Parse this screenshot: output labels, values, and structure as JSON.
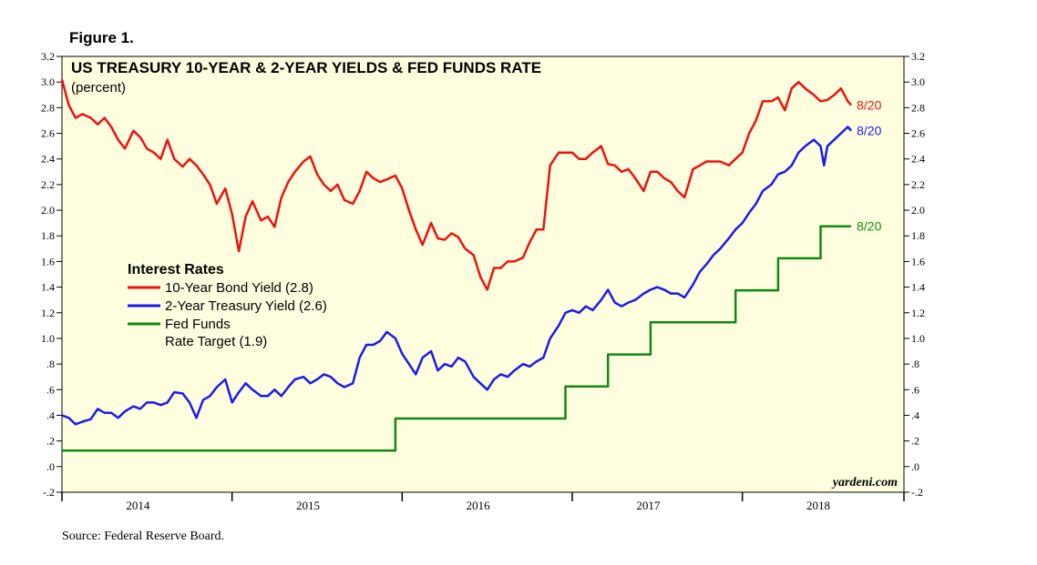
{
  "figure_label": "Figure 1.",
  "source_note": "Source: Federal Reserve Board.",
  "colors": {
    "plot_background": "#ffffe0",
    "ten_year": "#ee1111",
    "two_year": "#1a1aee",
    "fed_funds": "#118811"
  },
  "chart_data": {
    "type": "line",
    "title": "US TREASURY 10-YEAR & 2-YEAR YIELDS & FED FUNDS RATE",
    "subtitle": "(percent)",
    "xlabel": "",
    "ylabel": "",
    "xlim": [
      2014.0,
      2018.95
    ],
    "ylim": [
      -0.2,
      3.2
    ],
    "y_ticks": [
      -0.2,
      0.0,
      0.2,
      0.4,
      0.6,
      0.8,
      1.0,
      1.2,
      1.4,
      1.6,
      1.8,
      2.0,
      2.2,
      2.4,
      2.6,
      2.8,
      3.0,
      3.2
    ],
    "y_tick_labels": [
      "-.2",
      ".0",
      ".2",
      ".4",
      ".6",
      ".8",
      "1.0",
      "1.2",
      "1.4",
      "1.6",
      "1.8",
      "2.0",
      "2.2",
      "2.4",
      "2.6",
      "2.8",
      "3.0",
      "3.2"
    ],
    "x_year_labels": [
      {
        "label": "2014",
        "x": 2014.5
      },
      {
        "label": "2015",
        "x": 2015.5
      },
      {
        "label": "2016",
        "x": 2016.5
      },
      {
        "label": "2017",
        "x": 2017.5
      },
      {
        "label": "2018",
        "x": 2018.5
      }
    ],
    "x_year_boundaries": [
      2014.0,
      2015.0,
      2016.0,
      2017.0,
      2018.0
    ],
    "grid": false,
    "legend": {
      "title": "Interest Rates",
      "position": "center-left",
      "entries": [
        {
          "key": "ten_year",
          "lines": [
            "10-Year Bond Yield (2.8)"
          ]
        },
        {
          "key": "two_year",
          "lines": [
            "2-Year Treasury Yield (2.6)"
          ]
        },
        {
          "key": "fed_funds",
          "lines": [
            "Fed Funds",
            "Rate Target (1.9)"
          ]
        }
      ]
    },
    "watermark": "yardeni.com",
    "series": [
      {
        "key": "ten_year",
        "name": "10-Year Bond Yield",
        "end_label": "8/20",
        "step": false,
        "points": [
          [
            2014.0,
            3.02
          ],
          [
            2014.04,
            2.82
          ],
          [
            2014.08,
            2.72
          ],
          [
            2014.12,
            2.75
          ],
          [
            2014.17,
            2.72
          ],
          [
            2014.21,
            2.67
          ],
          [
            2014.25,
            2.72
          ],
          [
            2014.29,
            2.65
          ],
          [
            2014.33,
            2.55
          ],
          [
            2014.37,
            2.48
          ],
          [
            2014.42,
            2.62
          ],
          [
            2014.46,
            2.57
          ],
          [
            2014.5,
            2.48
          ],
          [
            2014.54,
            2.45
          ],
          [
            2014.58,
            2.4
          ],
          [
            2014.62,
            2.55
          ],
          [
            2014.66,
            2.4
          ],
          [
            2014.71,
            2.34
          ],
          [
            2014.75,
            2.4
          ],
          [
            2014.79,
            2.35
          ],
          [
            2014.83,
            2.28
          ],
          [
            2014.87,
            2.2
          ],
          [
            2014.91,
            2.05
          ],
          [
            2014.96,
            2.17
          ],
          [
            2015.0,
            1.97
          ],
          [
            2015.04,
            1.68
          ],
          [
            2015.08,
            1.95
          ],
          [
            2015.12,
            2.07
          ],
          [
            2015.17,
            1.92
          ],
          [
            2015.21,
            1.95
          ],
          [
            2015.25,
            1.87
          ],
          [
            2015.29,
            2.1
          ],
          [
            2015.33,
            2.22
          ],
          [
            2015.37,
            2.3
          ],
          [
            2015.42,
            2.38
          ],
          [
            2015.46,
            2.42
          ],
          [
            2015.5,
            2.28
          ],
          [
            2015.54,
            2.2
          ],
          [
            2015.58,
            2.15
          ],
          [
            2015.62,
            2.2
          ],
          [
            2015.66,
            2.08
          ],
          [
            2015.71,
            2.05
          ],
          [
            2015.75,
            2.15
          ],
          [
            2015.79,
            2.3
          ],
          [
            2015.83,
            2.25
          ],
          [
            2015.87,
            2.22
          ],
          [
            2015.91,
            2.24
          ],
          [
            2015.96,
            2.27
          ],
          [
            2016.0,
            2.17
          ],
          [
            2016.04,
            2.0
          ],
          [
            2016.08,
            1.85
          ],
          [
            2016.12,
            1.73
          ],
          [
            2016.17,
            1.9
          ],
          [
            2016.21,
            1.78
          ],
          [
            2016.25,
            1.77
          ],
          [
            2016.29,
            1.82
          ],
          [
            2016.33,
            1.79
          ],
          [
            2016.37,
            1.7
          ],
          [
            2016.42,
            1.65
          ],
          [
            2016.46,
            1.48
          ],
          [
            2016.5,
            1.38
          ],
          [
            2016.54,
            1.55
          ],
          [
            2016.58,
            1.55
          ],
          [
            2016.62,
            1.6
          ],
          [
            2016.66,
            1.6
          ],
          [
            2016.71,
            1.63
          ],
          [
            2016.75,
            1.75
          ],
          [
            2016.79,
            1.85
          ],
          [
            2016.83,
            1.85
          ],
          [
            2016.87,
            2.35
          ],
          [
            2016.92,
            2.45
          ],
          [
            2016.96,
            2.45
          ],
          [
            2017.0,
            2.45
          ],
          [
            2017.04,
            2.4
          ],
          [
            2017.08,
            2.4
          ],
          [
            2017.12,
            2.45
          ],
          [
            2017.17,
            2.5
          ],
          [
            2017.21,
            2.36
          ],
          [
            2017.25,
            2.35
          ],
          [
            2017.29,
            2.3
          ],
          [
            2017.33,
            2.32
          ],
          [
            2017.37,
            2.25
          ],
          [
            2017.42,
            2.15
          ],
          [
            2017.46,
            2.3
          ],
          [
            2017.5,
            2.3
          ],
          [
            2017.54,
            2.25
          ],
          [
            2017.58,
            2.22
          ],
          [
            2017.62,
            2.15
          ],
          [
            2017.66,
            2.1
          ],
          [
            2017.71,
            2.32
          ],
          [
            2017.75,
            2.35
          ],
          [
            2017.79,
            2.38
          ],
          [
            2017.83,
            2.38
          ],
          [
            2017.87,
            2.38
          ],
          [
            2017.92,
            2.35
          ],
          [
            2017.96,
            2.4
          ],
          [
            2018.0,
            2.45
          ],
          [
            2018.04,
            2.6
          ],
          [
            2018.08,
            2.7
          ],
          [
            2018.12,
            2.85
          ],
          [
            2018.17,
            2.85
          ],
          [
            2018.21,
            2.88
          ],
          [
            2018.25,
            2.78
          ],
          [
            2018.29,
            2.95
          ],
          [
            2018.33,
            3.0
          ],
          [
            2018.37,
            2.95
          ],
          [
            2018.42,
            2.9
          ],
          [
            2018.46,
            2.85
          ],
          [
            2018.5,
            2.86
          ],
          [
            2018.54,
            2.9
          ],
          [
            2018.58,
            2.95
          ],
          [
            2018.62,
            2.85
          ],
          [
            2018.64,
            2.82
          ]
        ]
      },
      {
        "key": "two_year",
        "name": "2-Year Treasury Yield",
        "end_label": "8/20",
        "step": false,
        "points": [
          [
            2014.0,
            0.4
          ],
          [
            2014.04,
            0.38
          ],
          [
            2014.08,
            0.33
          ],
          [
            2014.12,
            0.35
          ],
          [
            2014.17,
            0.37
          ],
          [
            2014.21,
            0.45
          ],
          [
            2014.25,
            0.42
          ],
          [
            2014.29,
            0.42
          ],
          [
            2014.33,
            0.38
          ],
          [
            2014.37,
            0.43
          ],
          [
            2014.42,
            0.47
          ],
          [
            2014.46,
            0.45
          ],
          [
            2014.5,
            0.5
          ],
          [
            2014.54,
            0.5
          ],
          [
            2014.58,
            0.48
          ],
          [
            2014.62,
            0.5
          ],
          [
            2014.66,
            0.58
          ],
          [
            2014.71,
            0.57
          ],
          [
            2014.75,
            0.5
          ],
          [
            2014.79,
            0.38
          ],
          [
            2014.83,
            0.52
          ],
          [
            2014.87,
            0.55
          ],
          [
            2014.91,
            0.62
          ],
          [
            2014.96,
            0.68
          ],
          [
            2015.0,
            0.5
          ],
          [
            2015.04,
            0.58
          ],
          [
            2015.08,
            0.65
          ],
          [
            2015.12,
            0.6
          ],
          [
            2015.17,
            0.55
          ],
          [
            2015.21,
            0.55
          ],
          [
            2015.25,
            0.6
          ],
          [
            2015.29,
            0.55
          ],
          [
            2015.33,
            0.62
          ],
          [
            2015.37,
            0.68
          ],
          [
            2015.42,
            0.7
          ],
          [
            2015.46,
            0.65
          ],
          [
            2015.5,
            0.68
          ],
          [
            2015.54,
            0.72
          ],
          [
            2015.58,
            0.7
          ],
          [
            2015.62,
            0.65
          ],
          [
            2015.66,
            0.62
          ],
          [
            2015.71,
            0.65
          ],
          [
            2015.75,
            0.85
          ],
          [
            2015.79,
            0.95
          ],
          [
            2015.83,
            0.95
          ],
          [
            2015.87,
            0.98
          ],
          [
            2015.91,
            1.05
          ],
          [
            2015.96,
            1.0
          ],
          [
            2016.0,
            0.88
          ],
          [
            2016.04,
            0.8
          ],
          [
            2016.08,
            0.72
          ],
          [
            2016.12,
            0.85
          ],
          [
            2016.17,
            0.9
          ],
          [
            2016.21,
            0.75
          ],
          [
            2016.25,
            0.8
          ],
          [
            2016.29,
            0.78
          ],
          [
            2016.33,
            0.85
          ],
          [
            2016.37,
            0.82
          ],
          [
            2016.42,
            0.7
          ],
          [
            2016.46,
            0.65
          ],
          [
            2016.5,
            0.6
          ],
          [
            2016.54,
            0.68
          ],
          [
            2016.58,
            0.72
          ],
          [
            2016.62,
            0.7
          ],
          [
            2016.66,
            0.75
          ],
          [
            2016.71,
            0.8
          ],
          [
            2016.75,
            0.78
          ],
          [
            2016.79,
            0.82
          ],
          [
            2016.83,
            0.85
          ],
          [
            2016.87,
            1.0
          ],
          [
            2016.92,
            1.1
          ],
          [
            2016.96,
            1.2
          ],
          [
            2017.0,
            1.22
          ],
          [
            2017.04,
            1.2
          ],
          [
            2017.08,
            1.25
          ],
          [
            2017.12,
            1.22
          ],
          [
            2017.17,
            1.3
          ],
          [
            2017.21,
            1.38
          ],
          [
            2017.25,
            1.28
          ],
          [
            2017.29,
            1.25
          ],
          [
            2017.33,
            1.28
          ],
          [
            2017.37,
            1.3
          ],
          [
            2017.42,
            1.35
          ],
          [
            2017.46,
            1.38
          ],
          [
            2017.5,
            1.4
          ],
          [
            2017.54,
            1.38
          ],
          [
            2017.58,
            1.35
          ],
          [
            2017.62,
            1.35
          ],
          [
            2017.66,
            1.32
          ],
          [
            2017.71,
            1.42
          ],
          [
            2017.75,
            1.52
          ],
          [
            2017.79,
            1.58
          ],
          [
            2017.83,
            1.65
          ],
          [
            2017.87,
            1.7
          ],
          [
            2017.92,
            1.78
          ],
          [
            2017.96,
            1.85
          ],
          [
            2018.0,
            1.9
          ],
          [
            2018.04,
            1.98
          ],
          [
            2018.08,
            2.05
          ],
          [
            2018.12,
            2.15
          ],
          [
            2018.17,
            2.2
          ],
          [
            2018.21,
            2.28
          ],
          [
            2018.25,
            2.3
          ],
          [
            2018.29,
            2.35
          ],
          [
            2018.33,
            2.45
          ],
          [
            2018.37,
            2.5
          ],
          [
            2018.42,
            2.55
          ],
          [
            2018.46,
            2.5
          ],
          [
            2018.48,
            2.35
          ],
          [
            2018.5,
            2.5
          ],
          [
            2018.54,
            2.55
          ],
          [
            2018.58,
            2.6
          ],
          [
            2018.62,
            2.65
          ],
          [
            2018.64,
            2.62
          ]
        ]
      },
      {
        "key": "fed_funds",
        "name": "Fed Funds Rate Target",
        "end_label": "8/20",
        "step": true,
        "points": [
          [
            2014.0,
            0.125
          ],
          [
            2015.96,
            0.375
          ],
          [
            2016.96,
            0.625
          ],
          [
            2017.21,
            0.875
          ],
          [
            2017.46,
            1.125
          ],
          [
            2017.96,
            1.375
          ],
          [
            2018.21,
            1.625
          ],
          [
            2018.46,
            1.875
          ],
          [
            2018.64,
            1.875
          ]
        ]
      }
    ]
  }
}
